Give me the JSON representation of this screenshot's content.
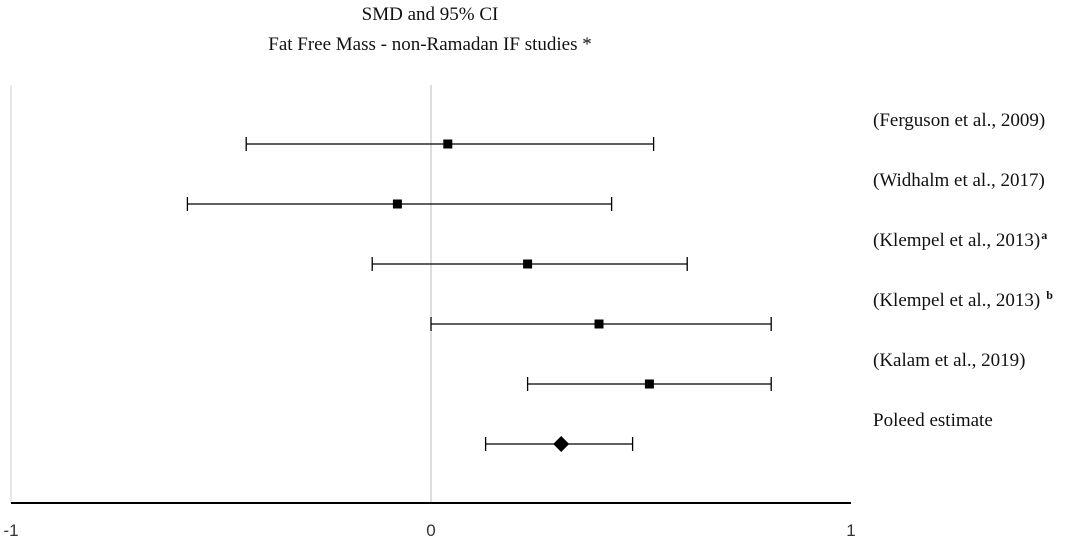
{
  "chart_data": {
    "type": "forest",
    "title": "SMD and 95% CI",
    "subtitle": "Fat Free Mass - non-Ramadan IF studies *",
    "xlim": [
      -1,
      1
    ],
    "x_ticks": [
      "-1",
      "0",
      "1"
    ],
    "x_tick_values": [
      -1,
      0,
      1
    ],
    "grid": false,
    "reference_line": 0,
    "studies": [
      {
        "label": "(Ferguson et al., 2009)",
        "superscript": "",
        "estimate": 0.04,
        "lower": -0.44,
        "upper": 0.53,
        "marker": "square"
      },
      {
        "label": "(Widhalm et al., 2017)",
        "superscript": "",
        "estimate": -0.08,
        "lower": -0.58,
        "upper": 0.43,
        "marker": "square"
      },
      {
        "label": "(Klempel et al., 2013)",
        "superscript": "a",
        "estimate": 0.23,
        "lower": -0.14,
        "upper": 0.61,
        "marker": "square"
      },
      {
        "label": "(Klempel et al., 2013)",
        "superscript": "b",
        "estimate": 0.4,
        "lower": 0.0,
        "upper": 0.81,
        "marker": "square"
      },
      {
        "label": "(Kalam et al., 2019)",
        "superscript": "",
        "estimate": 0.52,
        "lower": 0.23,
        "upper": 0.81,
        "marker": "square"
      },
      {
        "label": "Poleed estimate",
        "superscript": "",
        "estimate": 0.31,
        "lower": 0.13,
        "upper": 0.48,
        "marker": "diamond"
      }
    ]
  }
}
